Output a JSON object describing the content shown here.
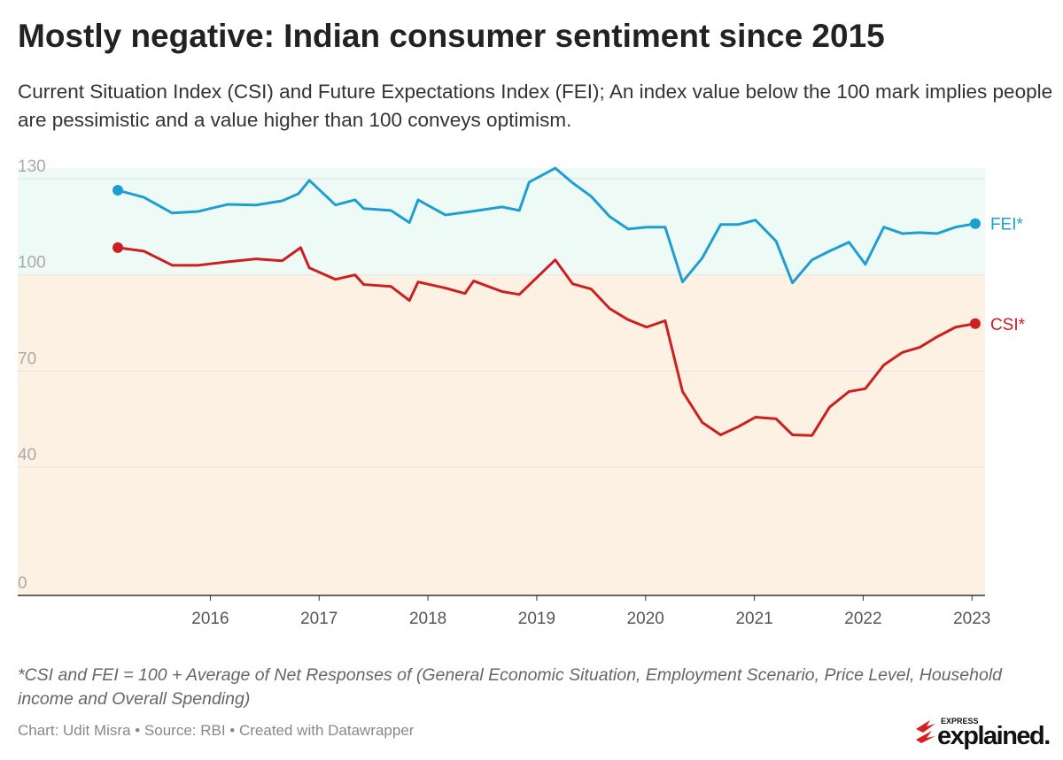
{
  "title": "Mostly negative: Indian consumer sentiment since 2015",
  "subtitle": "Current Situation Index (CSI) and Future Expectations Index (FEI); An index value below the 100 mark implies people are pessimistic and a value higher than 100 conveys optimism.",
  "chart_data": {
    "type": "line",
    "xlim": [
      2014.23,
      2023.12
    ],
    "xticks": [
      2016,
      2017,
      2018,
      2019,
      2020,
      2021,
      2022,
      2023
    ],
    "ylim": [
      0,
      130
    ],
    "yticks": [
      0,
      40,
      70,
      100,
      130
    ],
    "grid": true,
    "bands": [
      {
        "from": 100,
        "to": 130,
        "color": "#eefaf6"
      },
      {
        "from": 0,
        "to": 100,
        "color": "#fdf1e4"
      }
    ],
    "series": [
      {
        "name": "FEI*",
        "color": "#1f9fcf",
        "x": [
          2015.15,
          2015.39,
          2015.65,
          2015.89,
          2016.16,
          2016.42,
          2016.66,
          2016.81,
          2016.91,
          2017.15,
          2017.33,
          2017.41,
          2017.66,
          2017.83,
          2017.91,
          2018.16,
          2018.4,
          2018.68,
          2018.84,
          2018.93,
          2019.17,
          2019.33,
          2019.5,
          2019.67,
          2019.84,
          2020.01,
          2020.18,
          2020.34,
          2020.52,
          2020.69,
          2020.85,
          2021.01,
          2021.2,
          2021.35,
          2021.53,
          2021.69,
          2021.87,
          2022.02,
          2022.19,
          2022.36,
          2022.52,
          2022.68,
          2022.85,
          2023.03
        ],
        "values": [
          126.4,
          124.2,
          119.3,
          119.8,
          122.0,
          121.8,
          123.1,
          125.3,
          129.5,
          121.8,
          123.4,
          120.7,
          120.1,
          116.3,
          123.4,
          118.7,
          119.8,
          121.2,
          120.1,
          128.9,
          133.3,
          128.7,
          124.5,
          118.2,
          114.3,
          114.9,
          114.9,
          97.8,
          105.2,
          115.7,
          115.7,
          117.1,
          110.5,
          97.5,
          104.7,
          107.4,
          110.2,
          103.3,
          114.9,
          112.9,
          113.2,
          112.9,
          114.9,
          116.0
        ]
      },
      {
        "name": "CSI*",
        "color": "#cc1f1f",
        "x": [
          2015.15,
          2015.39,
          2015.65,
          2015.89,
          2016.16,
          2016.42,
          2016.66,
          2016.83,
          2016.91,
          2017.15,
          2017.33,
          2017.41,
          2017.66,
          2017.83,
          2017.91,
          2018.16,
          2018.34,
          2018.42,
          2018.68,
          2018.84,
          2019.17,
          2019.33,
          2019.5,
          2019.67,
          2019.84,
          2020.01,
          2020.18,
          2020.34,
          2020.52,
          2020.69,
          2020.85,
          2021.01,
          2021.2,
          2021.35,
          2021.53,
          2021.69,
          2021.87,
          2022.02,
          2022.19,
          2022.36,
          2022.52,
          2022.68,
          2022.85,
          2023.03
        ],
        "values": [
          108.5,
          107.4,
          103.0,
          103.0,
          104.1,
          105.0,
          104.4,
          108.5,
          102.2,
          98.6,
          100.0,
          97.0,
          96.4,
          92.0,
          97.8,
          95.9,
          94.2,
          98.1,
          94.8,
          93.9,
          104.7,
          97.2,
          95.6,
          89.5,
          86.0,
          83.7,
          85.7,
          63.6,
          54.0,
          50.1,
          52.6,
          55.6,
          55.1,
          50.1,
          49.9,
          58.7,
          63.6,
          64.5,
          71.9,
          75.8,
          77.4,
          80.7,
          83.7,
          84.8
        ]
      }
    ]
  },
  "note": "*CSI and FEI = 100 + Average of Net Responses of (General Economic Situation, Employment Scenario, Price Level, Household income and Overall Spending)",
  "credits": "Chart: Udit Misra • Source: RBI • Created with Datawrapper",
  "logo": {
    "top": "EXPRESS",
    "main": "explained."
  }
}
